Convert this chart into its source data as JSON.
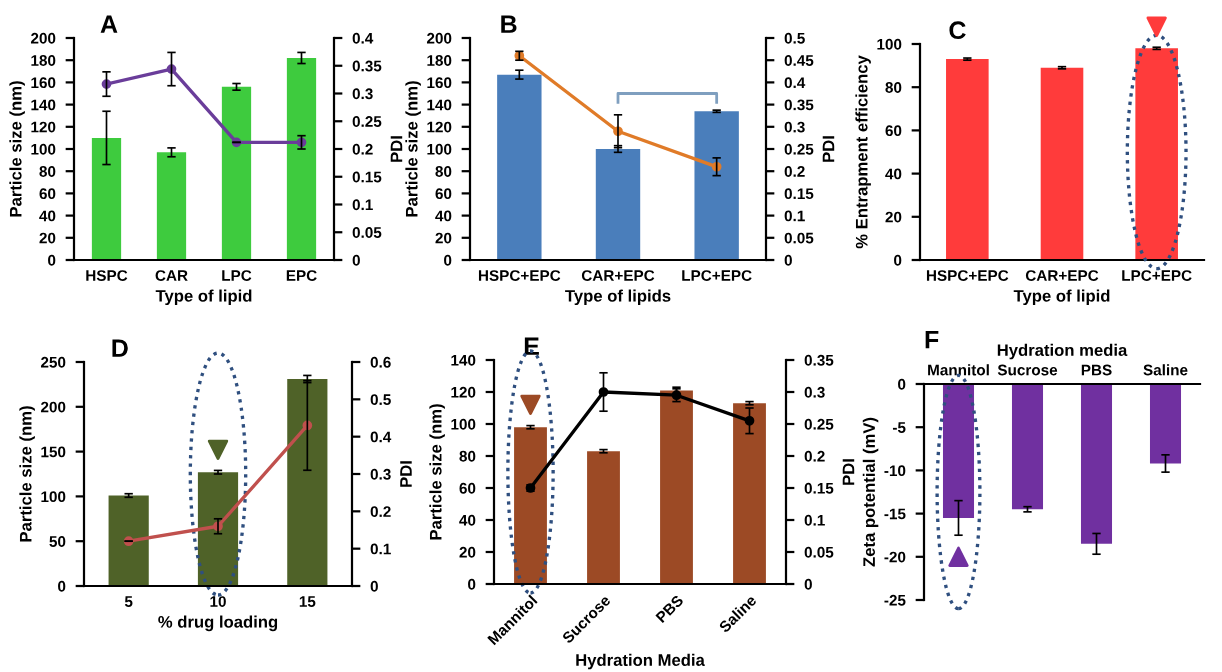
{
  "chart_data": [
    {
      "type": "bar",
      "title": "A",
      "categories": [
        "HSPC",
        "CAR",
        "LPC",
        "EPC"
      ],
      "xlabel": "Type of lipid",
      "ylabel": "Particle size (nm)",
      "y2label": "PDI",
      "series": [
        {
          "type": "bar",
          "color": "#3ecb3e",
          "values": [
            110,
            97,
            156,
            182
          ],
          "errors": [
            24,
            4,
            3,
            5
          ]
        },
        {
          "type": "line",
          "axis": "y2",
          "color": "#6a3d9a",
          "values": [
            0.317,
            0.344,
            0.212,
            0.212
          ],
          "errors": [
            0.022,
            0.03,
            null,
            0.012
          ],
          "marker": "circle"
        }
      ],
      "ylim": [
        0,
        200
      ],
      "yticks": [
        0,
        20,
        40,
        60,
        80,
        100,
        120,
        140,
        160,
        180,
        200
      ],
      "y2lim": [
        0,
        0.4
      ],
      "y2ticks": [
        0,
        0.05,
        0.1,
        0.15,
        0.2,
        0.25,
        0.3,
        0.35,
        0.4
      ],
      "grid": false,
      "legend": false
    },
    {
      "type": "bar",
      "title": "B",
      "categories": [
        "HSPC+EPC",
        "CAR+EPC",
        "LPC+EPC"
      ],
      "xlabel": "Type of lipids",
      "ylabel": "Particle size (nm)",
      "y2label": "PDI",
      "series": [
        {
          "type": "bar",
          "color": "#4a7ebb",
          "values": [
            167,
            100,
            134
          ],
          "errors": [
            4,
            3,
            1
          ]
        },
        {
          "type": "line",
          "axis": "y2",
          "color": "#e07b28",
          "values": [
            0.46,
            0.29,
            0.21
          ],
          "errors": [
            0.01,
            0.037,
            0.02
          ],
          "marker": "circle"
        }
      ],
      "ylim": [
        0,
        200
      ],
      "yticks": [
        0,
        20,
        40,
        60,
        80,
        100,
        120,
        140,
        160,
        180,
        200
      ],
      "y2lim": [
        0,
        0.5
      ],
      "y2ticks": [
        0,
        0.05,
        0.1,
        0.15,
        0.2,
        0.25,
        0.3,
        0.35,
        0.4,
        0.45,
        0.5
      ],
      "grid": false,
      "legend": false
    },
    {
      "type": "bar",
      "title": "C",
      "categories": [
        "HSPC+EPC",
        "CAR+EPC",
        "LPC+EPC"
      ],
      "xlabel": "Type of lipid",
      "ylabel": "% Entrapment efficiency",
      "series": [
        {
          "type": "bar",
          "color": "#ff3b3b",
          "values": [
            93,
            89,
            98
          ],
          "errors": [
            0.5,
            0.5,
            0.5
          ]
        }
      ],
      "ylim": [
        0,
        100
      ],
      "yticks": [
        0,
        20,
        40,
        60,
        80,
        100
      ],
      "grid": false,
      "legend": false
    },
    {
      "type": "bar",
      "title": "D",
      "categories": [
        "5",
        "10",
        "15"
      ],
      "xlabel": "% drug loading",
      "ylabel": "Particle size (nm)",
      "y2label": "PDI",
      "series": [
        {
          "type": "bar",
          "color": "#4f6228",
          "values": [
            101,
            127,
            231
          ],
          "errors": [
            2,
            2,
            4
          ]
        },
        {
          "type": "line",
          "axis": "y2",
          "color": "#c0504d",
          "values": [
            0.12,
            0.16,
            0.43
          ],
          "errors": [
            null,
            0.02,
            0.12
          ],
          "marker": "circle"
        }
      ],
      "ylim": [
        0,
        250
      ],
      "yticks": [
        0,
        50,
        100,
        150,
        200,
        250
      ],
      "y2lim": [
        0,
        0.6
      ],
      "y2ticks": [
        0,
        0.1,
        0.2,
        0.3,
        0.4,
        0.5,
        0.6
      ],
      "grid": false,
      "legend": false
    },
    {
      "type": "bar",
      "title": "E",
      "categories": [
        "Mannitol",
        "Sucrose",
        "PBS",
        "Saline"
      ],
      "xlabel": "Hydration Media",
      "ylabel": "Particle size (nm)",
      "y2label": "PDI",
      "series": [
        {
          "type": "bar",
          "color": "#9c4a25",
          "values": [
            98,
            83,
            121,
            113
          ],
          "errors": [
            1,
            1,
            2,
            1
          ]
        },
        {
          "type": "line",
          "axis": "y2",
          "color": "#000000",
          "values": [
            0.15,
            0.3,
            0.295,
            0.255
          ],
          "errors": [
            0.005,
            0.03,
            0.01,
            0.02
          ],
          "marker": "circle"
        }
      ],
      "ylim": [
        0,
        140
      ],
      "yticks": [
        0,
        20,
        40,
        60,
        80,
        100,
        120,
        140
      ],
      "y2lim": [
        0,
        0.35
      ],
      "y2ticks": [
        0,
        0.05,
        0.1,
        0.15,
        0.2,
        0.25,
        0.3,
        0.35
      ],
      "grid": false,
      "legend": false
    },
    {
      "type": "bar",
      "title": "F",
      "categories": [
        "Mannitol",
        "Sucrose",
        "PBS",
        "Saline"
      ],
      "xlabel": "Hydration media",
      "ylabel": "Zeta potential (mV)",
      "series": [
        {
          "type": "bar",
          "color": "#7030a0",
          "values": [
            -15.5,
            -14.5,
            -18.5,
            -9.2
          ],
          "errors": [
            2,
            0.3,
            1.2,
            1
          ]
        }
      ],
      "ylim": [
        -25,
        0
      ],
      "yticks": [
        -25,
        -20,
        -15,
        -10,
        -5,
        0
      ],
      "grid": false,
      "legend": false
    }
  ]
}
